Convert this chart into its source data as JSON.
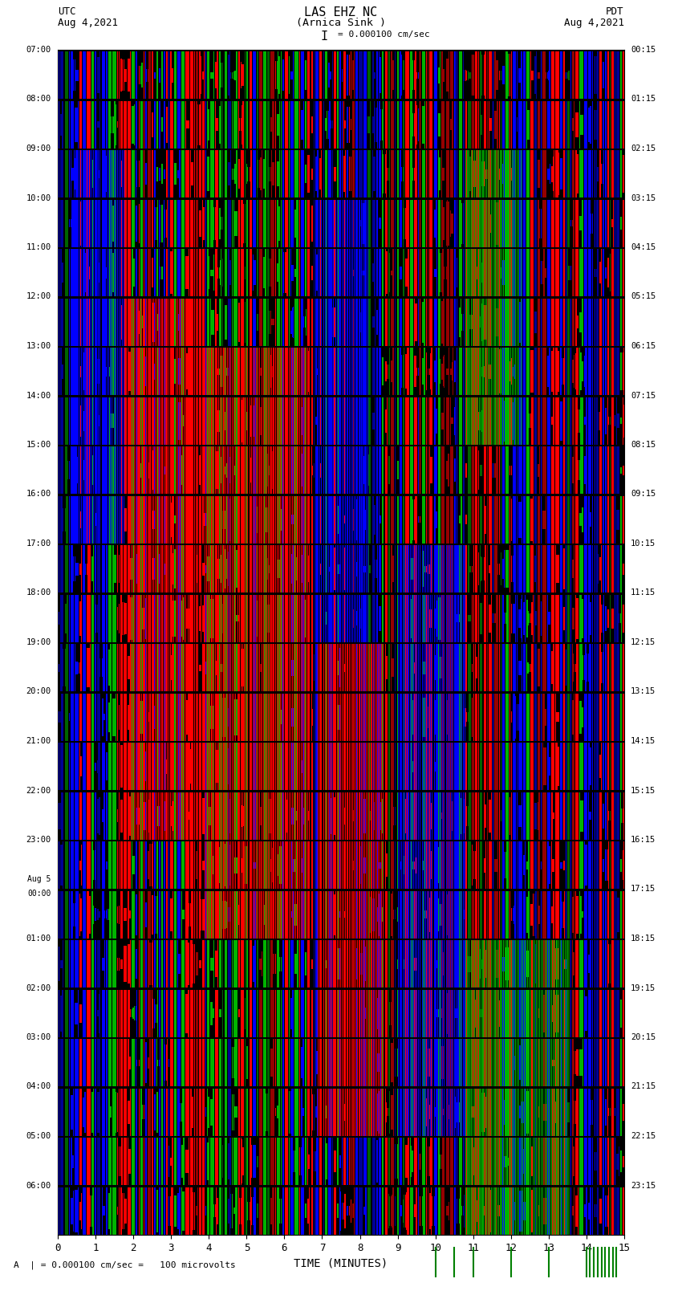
{
  "title_line1": "LAS EHZ NC",
  "title_line2": "(Arnica Sink )",
  "scale_text": "I = 0.000100 cm/sec",
  "footer_text": "A  | = 0.000100 cm/sec =   100 microvolts",
  "utc_label": "UTC",
  "utc_date": "Aug 4,2021",
  "pdt_label": "PDT",
  "pdt_date": "Aug 4,2021",
  "left_times": [
    "07:00",
    "08:00",
    "09:00",
    "10:00",
    "11:00",
    "12:00",
    "13:00",
    "14:00",
    "15:00",
    "16:00",
    "17:00",
    "18:00",
    "19:00",
    "20:00",
    "21:00",
    "22:00",
    "23:00",
    "Aug 5\n00:00",
    "01:00",
    "02:00",
    "03:00",
    "04:00",
    "05:00",
    "06:00"
  ],
  "right_times": [
    "00:15",
    "01:15",
    "02:15",
    "03:15",
    "04:15",
    "05:15",
    "06:15",
    "07:15",
    "08:15",
    "09:15",
    "10:15",
    "11:15",
    "12:15",
    "13:15",
    "14:15",
    "15:15",
    "16:15",
    "17:15",
    "18:15",
    "19:15",
    "20:15",
    "21:15",
    "22:15",
    "23:15"
  ],
  "xlabel": "TIME (MINUTES)",
  "xlim": [
    0,
    15
  ],
  "xticks": [
    0,
    1,
    2,
    3,
    4,
    5,
    6,
    7,
    8,
    9,
    10,
    11,
    12,
    13,
    14,
    15
  ],
  "bg_color": "#000000",
  "fig_bg": "#ffffff",
  "num_rows": 24,
  "seed": 42
}
